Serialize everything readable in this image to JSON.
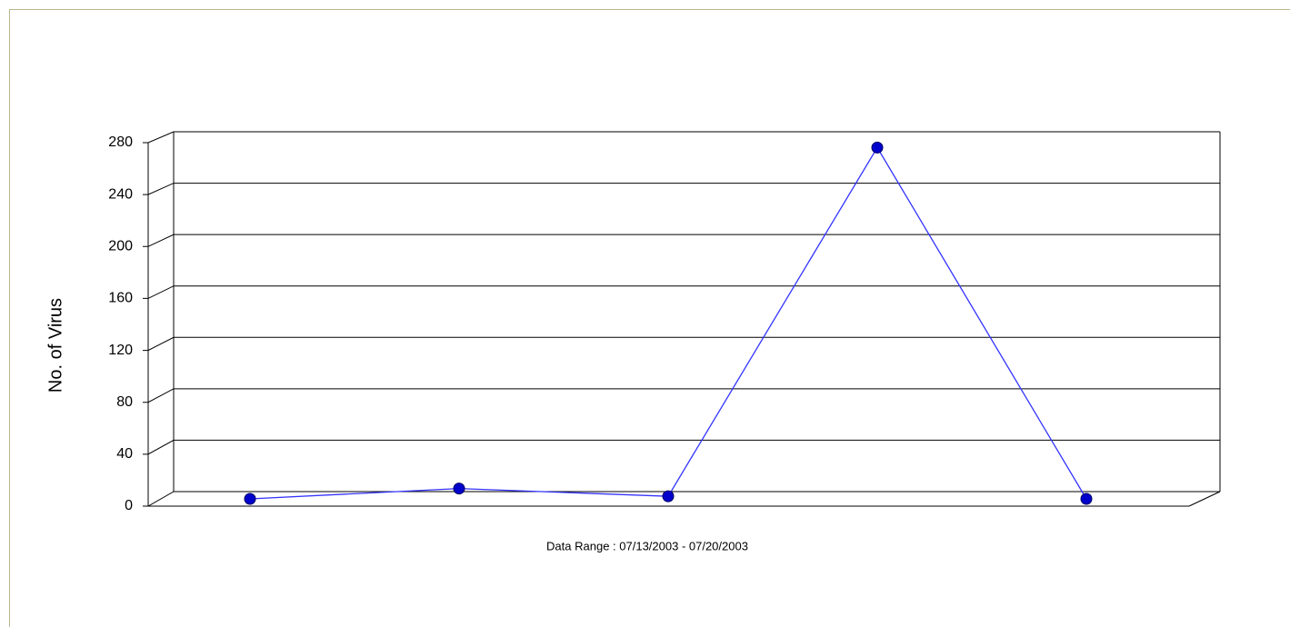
{
  "chart_data": {
    "type": "line",
    "categories": [
      null,
      null,
      null,
      null,
      null
    ],
    "series": [
      {
        "name": null,
        "color": "#3333ff",
        "values": [
          0,
          8,
          2,
          272,
          0
        ]
      }
    ],
    "ylabel": "No. of Virus",
    "subtitle": "Data Range : 07/13/2003 - 07/20/2003",
    "ylim": [
      0,
      280
    ],
    "yticks": [
      0,
      40,
      80,
      120,
      160,
      200,
      240,
      280
    ],
    "grid": true
  }
}
